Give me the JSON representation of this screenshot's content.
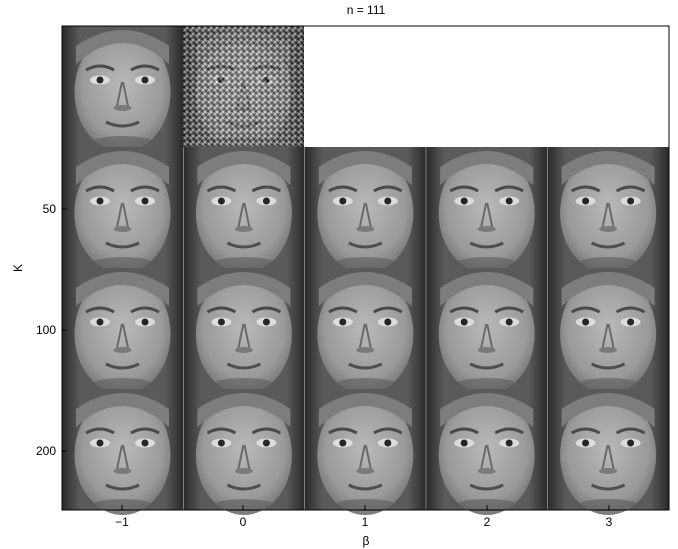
{
  "chart_data": {
    "type": "heatmap",
    "title": "n = 111",
    "xlabel": "β",
    "ylabel": "K",
    "x_ticks": [
      "−1",
      "0",
      "1",
      "2",
      "3"
    ],
    "y_ticks": [
      "50",
      "100",
      "200"
    ],
    "rows": [
      {
        "row": "top",
        "K": "",
        "cells": [
          {
            "beta": "−1",
            "image": "face-original",
            "desc": "original face"
          },
          {
            "beta": "0",
            "image": "face-noisy",
            "desc": "noise-corrupted face"
          }
        ]
      },
      {
        "row": "K=50",
        "K": "50",
        "cells": [
          "−1",
          "0",
          "1",
          "2",
          "3"
        ]
      },
      {
        "row": "K=100",
        "K": "100",
        "cells": [
          "−1",
          "0",
          "1",
          "2",
          "3"
        ]
      },
      {
        "row": "K=200",
        "K": "200",
        "cells": [
          "−1",
          "0",
          "1",
          "2",
          "3"
        ]
      }
    ],
    "grid": false,
    "legend": "none",
    "colors": {
      "frame": "#000000",
      "background": "#ffffff"
    }
  }
}
